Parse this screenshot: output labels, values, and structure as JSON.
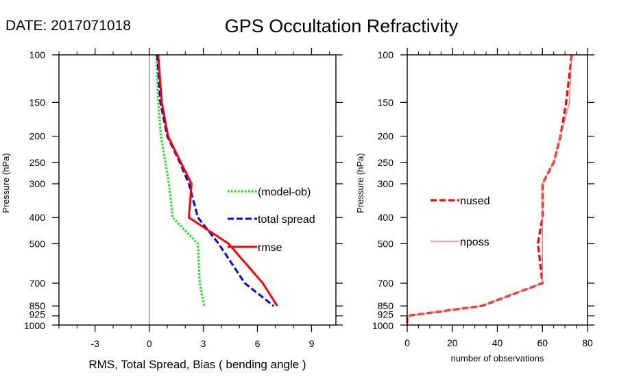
{
  "header": {
    "date_label": "DATE: 2017071018",
    "title": "GPS Occultation Refractivity"
  },
  "chart_data": [
    {
      "type": "line",
      "name": "spread-panel",
      "title": "GPS Occultation Refractivity",
      "xlabel": "RMS, Total Spread, Bias ( bending angle )",
      "ylabel": "Pressure (hPa)",
      "xlim": [
        -5,
        10.35
      ],
      "ylim": [
        1000,
        100
      ],
      "yscale": "log",
      "x_ticks": [
        -3,
        0,
        3,
        6,
        9
      ],
      "x_tick_labels": [
        "-3",
        "0",
        "3",
        "6",
        "9"
      ],
      "x_minor_step": 1,
      "y_ticks": [
        100,
        150,
        200,
        250,
        300,
        400,
        500,
        700,
        850,
        925,
        1000
      ],
      "y_tick_labels": [
        "100",
        "150",
        "200",
        "250",
        "300",
        "400",
        "500",
        "700",
        "850",
        "925",
        "1000"
      ],
      "zero_line": 0,
      "legend_position": "center-right",
      "series": [
        {
          "name": "(model-ob)",
          "color": "#00ee00",
          "style": "dotted",
          "pressure": [
            100,
            150,
            200,
            250,
            300,
            400,
            500,
            700,
            850
          ],
          "values": [
            0.4,
            0.5,
            0.65,
            0.9,
            1.1,
            1.3,
            2.7,
            2.8,
            3.05
          ]
        },
        {
          "name": "total spread",
          "color": "#0000ee",
          "style": "dashed",
          "pressure": [
            100,
            150,
            200,
            250,
            300,
            400,
            500,
            700,
            850
          ],
          "values": [
            0.45,
            0.62,
            1.0,
            1.7,
            2.2,
            2.7,
            3.85,
            5.3,
            6.9
          ]
        },
        {
          "name": "rmse",
          "color": "#ff0000",
          "style": "solid",
          "pressure": [
            100,
            150,
            200,
            250,
            300,
            400,
            500,
            700,
            850
          ],
          "values": [
            0.5,
            0.7,
            1.05,
            1.75,
            2.35,
            2.2,
            4.4,
            6.3,
            7.1
          ]
        }
      ]
    },
    {
      "type": "line",
      "name": "count-panel",
      "xlabel": "number of observations",
      "ylabel": "Pressure (hPa)",
      "xlim": [
        0,
        80
      ],
      "ylim": [
        1000,
        100
      ],
      "yscale": "log",
      "x_ticks": [
        0,
        20,
        40,
        60,
        80
      ],
      "x_tick_labels": [
        "0",
        "20",
        "40",
        "60",
        "80"
      ],
      "x_minor_step": 5,
      "y_ticks": [
        100,
        150,
        200,
        250,
        300,
        400,
        500,
        700,
        850,
        925,
        1000
      ],
      "y_tick_labels": [
        "100",
        "150",
        "200",
        "250",
        "300",
        "400",
        "500",
        "700",
        "850",
        "925",
        "1000"
      ],
      "legend_position": "center-left",
      "series": [
        {
          "name": "nused",
          "color": "#ff0000",
          "style": "dashed",
          "pressure": [
            100,
            150,
            200,
            250,
            300,
            400,
            500,
            700,
            850,
            925,
            1000
          ],
          "values": [
            73,
            70.5,
            68,
            65,
            60,
            60,
            58,
            60,
            33,
            0,
            0
          ]
        },
        {
          "name": "nposs",
          "color": "#ff6666",
          "style": "solid",
          "pressure": [
            100,
            150,
            200,
            250,
            300,
            400,
            500,
            700,
            850,
            925,
            1000
          ],
          "values": [
            73,
            72,
            68,
            65,
            60,
            60,
            60,
            60,
            33,
            0,
            0
          ]
        }
      ]
    }
  ]
}
